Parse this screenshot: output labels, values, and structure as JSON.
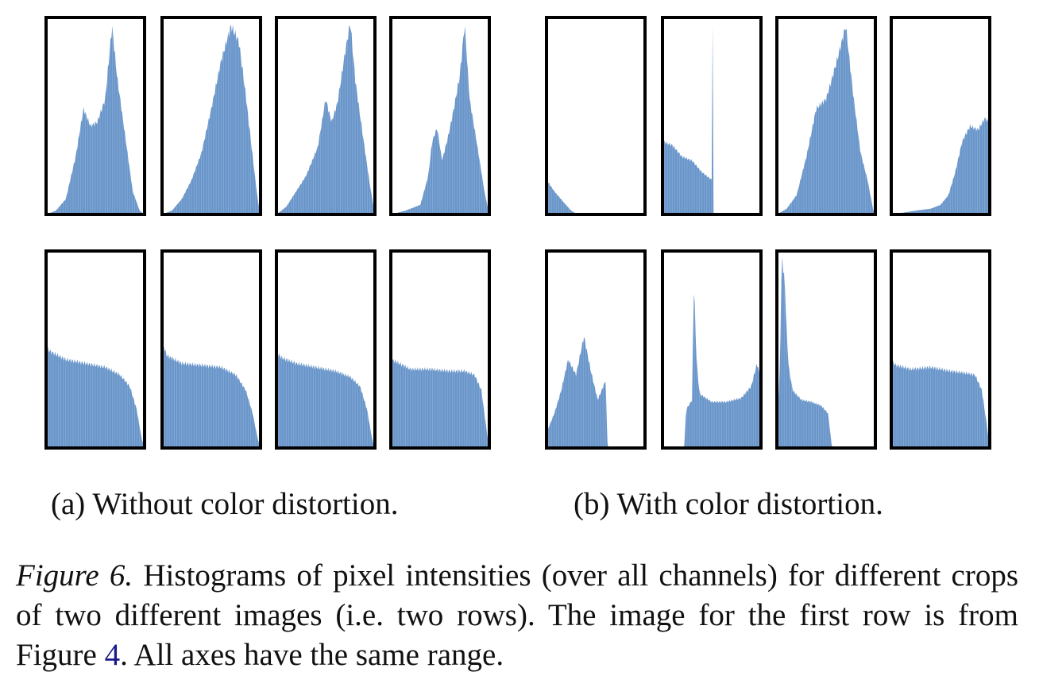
{
  "colors": {
    "bar": "#5b8cc6",
    "frame": "#000000",
    "reference_link": "#1a1a8c"
  },
  "panels": {
    "a": {
      "caption": "(a) Without color distortion."
    },
    "b": {
      "caption": "(b) With color distortion."
    }
  },
  "caption": {
    "label": "Figure 6.",
    "text_1": " Histograms of pixel intensities (over all channels) for different crops of two different images (i.e. two rows). The image for the first row is from Figure ",
    "ref": "4",
    "text_2": ". All axes have the same range."
  },
  "chart_data": {
    "type": "histogram-grid",
    "note_axes_shared": true,
    "x_range": [
      0,
      1
    ],
    "y_range": [
      0,
      1
    ],
    "rows": 2,
    "panels": [
      {
        "name": "a",
        "row_1": [
          {
            "x": [
              0,
              0.1,
              0.2,
              0.3,
              0.38,
              0.45,
              0.52,
              0.6,
              0.67,
              0.72,
              0.8,
              0.88,
              0.95,
              1.0
            ],
            "y": [
              0,
              0.02,
              0.08,
              0.3,
              0.55,
              0.46,
              0.48,
              0.6,
              0.98,
              0.72,
              0.42,
              0.12,
              0.02,
              0
            ]
          },
          {
            "x": [
              0,
              0.1,
              0.2,
              0.3,
              0.4,
              0.5,
              0.6,
              0.7,
              0.78,
              0.85,
              0.92,
              0.97,
              1.0
            ],
            "y": [
              0,
              0.02,
              0.08,
              0.18,
              0.32,
              0.55,
              0.8,
              0.98,
              0.9,
              0.62,
              0.3,
              0.08,
              0
            ]
          },
          {
            "x": [
              0,
              0.1,
              0.2,
              0.3,
              0.42,
              0.5,
              0.56,
              0.62,
              0.7,
              0.75,
              0.8,
              0.88,
              0.95,
              1.0
            ],
            "y": [
              0,
              0.04,
              0.12,
              0.2,
              0.35,
              0.6,
              0.48,
              0.58,
              0.85,
              1.0,
              0.7,
              0.4,
              0.15,
              0
            ]
          },
          {
            "x": [
              0,
              0.15,
              0.3,
              0.38,
              0.42,
              0.47,
              0.52,
              0.58,
              0.64,
              0.7,
              0.75,
              0.8,
              0.88,
              0.95,
              1.0
            ],
            "y": [
              0,
              0.02,
              0.05,
              0.2,
              0.38,
              0.45,
              0.28,
              0.4,
              0.55,
              0.72,
              0.99,
              0.6,
              0.35,
              0.12,
              0
            ]
          }
        ],
        "row_2": [
          {
            "x": [
              0,
              0.05,
              0.2,
              0.4,
              0.6,
              0.75,
              0.85,
              0.92,
              0.97,
              1.0
            ],
            "y": [
              0.52,
              0.5,
              0.46,
              0.44,
              0.42,
              0.38,
              0.32,
              0.2,
              0.05,
              0
            ]
          },
          {
            "x": [
              0,
              0.05,
              0.2,
              0.4,
              0.6,
              0.75,
              0.85,
              0.92,
              0.97,
              1.0
            ],
            "y": [
              0.55,
              0.48,
              0.44,
              0.43,
              0.42,
              0.38,
              0.3,
              0.18,
              0.05,
              0
            ]
          },
          {
            "x": [
              0,
              0.05,
              0.2,
              0.4,
              0.6,
              0.75,
              0.85,
              0.92,
              0.97,
              1.0
            ],
            "y": [
              0.5,
              0.47,
              0.44,
              0.42,
              0.4,
              0.37,
              0.32,
              0.2,
              0.05,
              0
            ]
          },
          {
            "x": [
              0,
              0.05,
              0.2,
              0.4,
              0.6,
              0.75,
              0.85,
              0.92,
              0.97,
              1.0
            ],
            "y": [
              0.46,
              0.45,
              0.41,
              0.41,
              0.4,
              0.4,
              0.38,
              0.3,
              0.1,
              0
            ]
          }
        ]
      },
      {
        "name": "b",
        "row_1": [
          {
            "x": [
              0,
              0.08,
              0.18,
              0.25,
              0.3,
              0.32,
              1.0
            ],
            "y": [
              0.18,
              0.12,
              0.06,
              0.02,
              0.005,
              0,
              0
            ]
          },
          {
            "x": [
              0,
              0.1,
              0.2,
              0.3,
              0.4,
              0.5,
              0.5,
              0.51,
              0.51,
              0.52,
              1.0
            ],
            "y": [
              0.38,
              0.36,
              0.3,
              0.28,
              0.22,
              0.18,
              1.0,
              1.0,
              0,
              0,
              0
            ]
          },
          {
            "x": [
              0,
              0.1,
              0.2,
              0.3,
              0.4,
              0.5,
              0.6,
              0.7,
              0.78,
              0.85,
              0.92,
              0.98,
              1.0
            ],
            "y": [
              0,
              0.03,
              0.1,
              0.3,
              0.55,
              0.6,
              0.78,
              0.98,
              0.6,
              0.32,
              0.18,
              0.02,
              0
            ]
          },
          {
            "x": [
              0,
              0.25,
              0.4,
              0.5,
              0.58,
              0.65,
              0.72,
              0.8,
              0.88,
              0.95,
              1.0
            ],
            "y": [
              0,
              0.02,
              0.03,
              0.05,
              0.1,
              0.22,
              0.38,
              0.46,
              0.44,
              0.5,
              0.48
            ]
          }
        ],
        "row_2": [
          {
            "x": [
              0,
              0.08,
              0.15,
              0.22,
              0.3,
              0.38,
              0.45,
              0.52,
              0.6,
              0.62,
              0.64,
              1.0
            ],
            "y": [
              0.08,
              0.18,
              0.3,
              0.46,
              0.38,
              0.58,
              0.4,
              0.25,
              0.35,
              0,
              0,
              0
            ]
          },
          {
            "x": [
              0,
              0.22,
              0.24,
              0.3,
              0.32,
              0.34,
              0.36,
              0.38,
              0.5,
              0.65,
              0.8,
              0.9,
              0.96,
              1.0
            ],
            "y": [
              0,
              0,
              0.2,
              0.25,
              0.88,
              0.52,
              0.36,
              0.28,
              0.24,
              0.24,
              0.26,
              0.32,
              0.44,
              0.36
            ]
          },
          {
            "x": [
              0,
              0.03,
              0.05,
              0.08,
              0.1,
              0.12,
              0.16,
              0.25,
              0.35,
              0.45,
              0.52,
              0.56,
              1.0
            ],
            "y": [
              0.12,
              0.4,
              1.0,
              0.86,
              0.6,
              0.42,
              0.3,
              0.25,
              0.24,
              0.22,
              0.18,
              0,
              0
            ]
          },
          {
            "x": [
              0,
              0.05,
              0.2,
              0.4,
              0.6,
              0.75,
              0.85,
              0.92,
              0.97,
              1.0
            ],
            "y": [
              0.45,
              0.43,
              0.41,
              0.42,
              0.4,
              0.39,
              0.38,
              0.3,
              0.12,
              0
            ]
          }
        ]
      }
    ]
  }
}
